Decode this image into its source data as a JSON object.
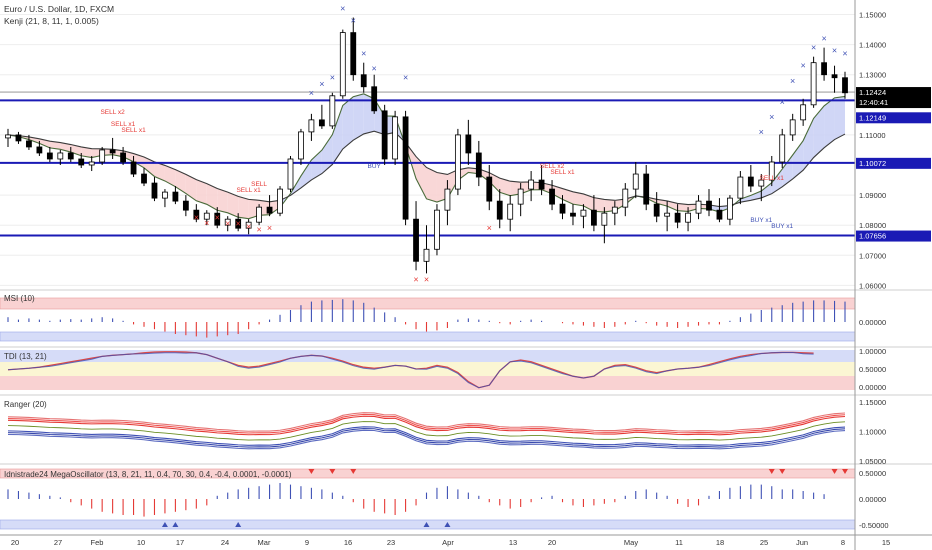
{
  "header": {
    "symbol": "Euro / U.S. Dollar, 1D, FXCM",
    "indicator": "Kenji (21, 8, 11, 1, 0.005)"
  },
  "panes": {
    "msi": "MSI (10)",
    "tdi": "TDI (13, 21)",
    "ranger": "Ranger (20)",
    "mega": "Idnistrade24 MegaOscillator (13, 8, 21, 11, 0.4, 70, 30, 0.4, -0.4, 0.0001, -0.0001)"
  },
  "price_axis": {
    "ticks": [
      "1.15000",
      "1.14000",
      "1.13000",
      "1.11000",
      "1.09000",
      "1.08000",
      "1.07000",
      "1.06000"
    ],
    "tags": [
      {
        "label": "1.12424",
        "bg": "#000000"
      },
      {
        "label": "12:40:41",
        "bg": "#000000"
      },
      {
        "label": "1.12149",
        "bg": "#1a1ab5"
      },
      {
        "label": "1.10072",
        "bg": "#1a1ab5"
      },
      {
        "label": "1.07656",
        "bg": "#1a1ab5"
      }
    ]
  },
  "msi_axis": [
    "0.00000"
  ],
  "tdi_axis": [
    "1.00000",
    "0.50000",
    "0.00000"
  ],
  "ranger_axis": [
    "1.15000",
    "1.10000",
    "1.05000"
  ],
  "mega_axis": [
    "0.50000",
    "0.00000",
    "-0.50000"
  ],
  "time_axis": [
    "20",
    "27",
    "Feb",
    "10",
    "17",
    "24",
    "Mar",
    "9",
    "16",
    "23",
    "Apr",
    "13",
    "20",
    "May",
    "11",
    "18",
    "25",
    "Jun",
    "8",
    "15"
  ],
  "signals": [
    "SELL x2",
    "SELL x1",
    "SELL x1",
    "SELL",
    "SELL x1",
    "BUY",
    "SELL x2",
    "SELL x1",
    "SELL x1",
    "BUY x1",
    "BUY x1"
  ],
  "colors": {
    "blue_line": "#1a1ab5",
    "up_candle": "#ffffff",
    "down_candle": "#000000",
    "sell_signal": "#e53935",
    "buy_signal": "#3f51b5",
    "bear_cloud": "#f8d0d0",
    "bull_cloud": "#d3e8d0",
    "blue_cloud": "#c8cff5",
    "band_red": "#f9d2d2",
    "band_blue": "#d6dcf8",
    "band_yellow": "#fbf6d3"
  },
  "chart_data": {
    "type": "candlestick",
    "price_range": [
      1.0588,
      1.1535
    ],
    "horizontal_levels": [
      1.12149,
      1.10072,
      1.07656
    ],
    "last_price": 1.12424,
    "candles": [
      [
        1.109,
        1.112,
        1.106,
        1.11
      ],
      [
        1.11,
        1.111,
        1.107,
        1.108
      ],
      [
        1.108,
        1.11,
        1.105,
        1.106
      ],
      [
        1.106,
        1.108,
        1.103,
        1.104
      ],
      [
        1.104,
        1.106,
        1.101,
        1.102
      ],
      [
        1.102,
        1.105,
        1.1,
        1.104
      ],
      [
        1.104,
        1.106,
        1.101,
        1.102
      ],
      [
        1.102,
        1.104,
        1.099,
        1.1
      ],
      [
        1.1,
        1.103,
        1.098,
        1.101
      ],
      [
        1.101,
        1.106,
        1.1,
        1.105
      ],
      [
        1.105,
        1.109,
        1.102,
        1.104
      ],
      [
        1.104,
        1.106,
        1.1,
        1.101
      ],
      [
        1.101,
        1.103,
        1.096,
        1.097
      ],
      [
        1.097,
        1.099,
        1.093,
        1.094
      ],
      [
        1.094,
        1.096,
        1.088,
        1.089
      ],
      [
        1.089,
        1.092,
        1.086,
        1.091
      ],
      [
        1.091,
        1.093,
        1.087,
        1.088
      ],
      [
        1.088,
        1.09,
        1.083,
        1.085
      ],
      [
        1.085,
        1.087,
        1.081,
        1.082
      ],
      [
        1.082,
        1.085,
        1.08,
        1.084
      ],
      [
        1.084,
        1.086,
        1.079,
        1.08
      ],
      [
        1.08,
        1.083,
        1.078,
        1.082
      ],
      [
        1.082,
        1.084,
        1.078,
        1.079
      ],
      [
        1.079,
        1.082,
        1.077,
        1.081
      ],
      [
        1.081,
        1.087,
        1.08,
        1.086
      ],
      [
        1.086,
        1.09,
        1.083,
        1.084
      ],
      [
        1.084,
        1.093,
        1.083,
        1.092
      ],
      [
        1.092,
        1.103,
        1.091,
        1.102
      ],
      [
        1.102,
        1.112,
        1.1,
        1.111
      ],
      [
        1.111,
        1.117,
        1.108,
        1.115
      ],
      [
        1.115,
        1.12,
        1.112,
        1.113
      ],
      [
        1.113,
        1.124,
        1.112,
        1.123
      ],
      [
        1.123,
        1.145,
        1.122,
        1.144
      ],
      [
        1.144,
        1.149,
        1.128,
        1.13
      ],
      [
        1.13,
        1.134,
        1.124,
        1.126
      ],
      [
        1.126,
        1.13,
        1.117,
        1.118
      ],
      [
        1.118,
        1.12,
        1.1,
        1.102
      ],
      [
        1.102,
        1.118,
        1.1,
        1.116
      ],
      [
        1.116,
        1.118,
        1.08,
        1.082
      ],
      [
        1.082,
        1.088,
        1.065,
        1.068
      ],
      [
        1.068,
        1.08,
        1.064,
        1.072
      ],
      [
        1.072,
        1.087,
        1.07,
        1.085
      ],
      [
        1.085,
        1.095,
        1.08,
        1.092
      ],
      [
        1.092,
        1.112,
        1.09,
        1.11
      ],
      [
        1.11,
        1.115,
        1.1,
        1.104
      ],
      [
        1.104,
        1.108,
        1.093,
        1.096
      ],
      [
        1.096,
        1.1,
        1.085,
        1.088
      ],
      [
        1.088,
        1.092,
        1.079,
        1.082
      ],
      [
        1.082,
        1.09,
        1.078,
        1.087
      ],
      [
        1.087,
        1.094,
        1.083,
        1.092
      ],
      [
        1.092,
        1.098,
        1.088,
        1.095
      ],
      [
        1.095,
        1.1,
        1.09,
        1.092
      ],
      [
        1.092,
        1.095,
        1.085,
        1.087
      ],
      [
        1.087,
        1.09,
        1.082,
        1.084
      ],
      [
        1.084,
        1.087,
        1.08,
        1.083
      ],
      [
        1.083,
        1.087,
        1.079,
        1.085
      ],
      [
        1.085,
        1.09,
        1.078,
        1.08
      ],
      [
        1.08,
        1.086,
        1.074,
        1.084
      ],
      [
        1.084,
        1.088,
        1.08,
        1.086
      ],
      [
        1.086,
        1.094,
        1.083,
        1.092
      ],
      [
        1.092,
        1.101,
        1.089,
        1.097
      ],
      [
        1.097,
        1.1,
        1.085,
        1.087
      ],
      [
        1.087,
        1.091,
        1.081,
        1.083
      ],
      [
        1.083,
        1.088,
        1.078,
        1.084
      ],
      [
        1.084,
        1.087,
        1.079,
        1.081
      ],
      [
        1.081,
        1.086,
        1.078,
        1.084
      ],
      [
        1.084,
        1.09,
        1.082,
        1.088
      ],
      [
        1.088,
        1.092,
        1.083,
        1.085
      ],
      [
        1.085,
        1.089,
        1.081,
        1.082
      ],
      [
        1.082,
        1.09,
        1.08,
        1.089
      ],
      [
        1.089,
        1.098,
        1.087,
        1.096
      ],
      [
        1.096,
        1.1,
        1.091,
        1.093
      ],
      [
        1.093,
        1.097,
        1.088,
        1.095
      ],
      [
        1.095,
        1.103,
        1.093,
        1.101
      ],
      [
        1.101,
        1.112,
        1.099,
        1.11
      ],
      [
        1.11,
        1.117,
        1.108,
        1.115
      ],
      [
        1.115,
        1.122,
        1.113,
        1.12
      ],
      [
        1.12,
        1.136,
        1.119,
        1.134
      ],
      [
        1.134,
        1.139,
        1.128,
        1.13
      ],
      [
        1.13,
        1.133,
        1.124,
        1.129
      ],
      [
        1.129,
        1.131,
        1.122,
        1.124
      ]
    ],
    "msi_values": [
      0.2,
      0.1,
      0.15,
      0.1,
      0.05,
      0.1,
      0.12,
      0.1,
      0.15,
      0.2,
      0.15,
      0.05,
      -0.1,
      -0.2,
      -0.3,
      -0.4,
      -0.5,
      -0.55,
      -0.6,
      -0.65,
      -0.6,
      -0.55,
      -0.5,
      -0.3,
      -0.1,
      0.1,
      0.3,
      0.5,
      0.7,
      0.85,
      0.9,
      0.92,
      0.95,
      0.9,
      0.8,
      0.6,
      0.4,
      0.2,
      -0.1,
      -0.3,
      -0.4,
      -0.35,
      -0.25,
      0.1,
      0.15,
      0.1,
      0.05,
      -0.05,
      -0.1,
      0.05,
      0.1,
      0.05,
      0.0,
      -0.05,
      -0.1,
      -0.15,
      -0.2,
      -0.25,
      -0.2,
      -0.1,
      0.05,
      -0.05,
      -0.15,
      -0.2,
      -0.25,
      -0.2,
      -0.15,
      -0.1,
      -0.1,
      0.05,
      0.2,
      0.35,
      0.5,
      0.6,
      0.7,
      0.8,
      0.85,
      0.9,
      0.9,
      0.88,
      0.85
    ],
    "tdi_values": [
      0.48,
      0.5,
      0.52,
      0.55,
      0.6,
      0.65,
      0.7,
      0.75,
      0.8,
      0.85,
      0.88,
      0.9,
      0.92,
      0.95,
      0.97,
      0.98,
      0.98,
      0.97,
      0.95,
      0.9,
      0.8,
      0.7,
      0.6,
      0.55,
      0.58,
      0.65,
      0.72,
      0.8,
      0.85,
      0.88,
      0.86,
      0.8,
      0.72,
      0.62,
      0.55,
      0.52,
      0.55,
      0.6,
      0.58,
      0.5,
      0.52,
      0.6,
      0.55,
      0.4,
      0.15,
      -0.02,
      0.05,
      0.45,
      0.7,
      0.75,
      0.7,
      0.6,
      0.5,
      0.4,
      0.3,
      0.25,
      0.3,
      0.5,
      0.6,
      0.62,
      0.55,
      0.45,
      0.4,
      0.45,
      0.5,
      0.52,
      0.55,
      0.62,
      0.7,
      0.78,
      0.85,
      0.9,
      0.93,
      0.95,
      0.96,
      0.96,
      0.95,
      0.94
    ],
    "mega_values": [
      0.3,
      0.25,
      0.2,
      0.15,
      0.1,
      0.05,
      -0.1,
      -0.2,
      -0.3,
      -0.4,
      -0.45,
      -0.5,
      -0.5,
      -0.55,
      -0.5,
      -0.45,
      -0.4,
      -0.35,
      -0.3,
      -0.2,
      0.1,
      0.2,
      0.3,
      0.35,
      0.4,
      0.45,
      0.5,
      0.45,
      0.4,
      0.35,
      0.3,
      0.2,
      0.1,
      -0.1,
      -0.3,
      -0.4,
      -0.45,
      -0.5,
      -0.4,
      -0.2,
      0.2,
      0.35,
      0.4,
      0.3,
      0.2,
      0.1,
      -0.1,
      -0.2,
      -0.3,
      -0.25,
      -0.1,
      0.05,
      0.1,
      -0.1,
      -0.2,
      -0.25,
      -0.2,
      -0.15,
      -0.1,
      0.1,
      0.25,
      0.3,
      0.2,
      0.1,
      -0.15,
      -0.25,
      -0.2,
      0.1,
      0.25,
      0.35,
      0.4,
      0.45,
      0.45,
      0.4,
      0.3,
      0.3,
      0.25,
      0.2,
      0.15
    ]
  }
}
